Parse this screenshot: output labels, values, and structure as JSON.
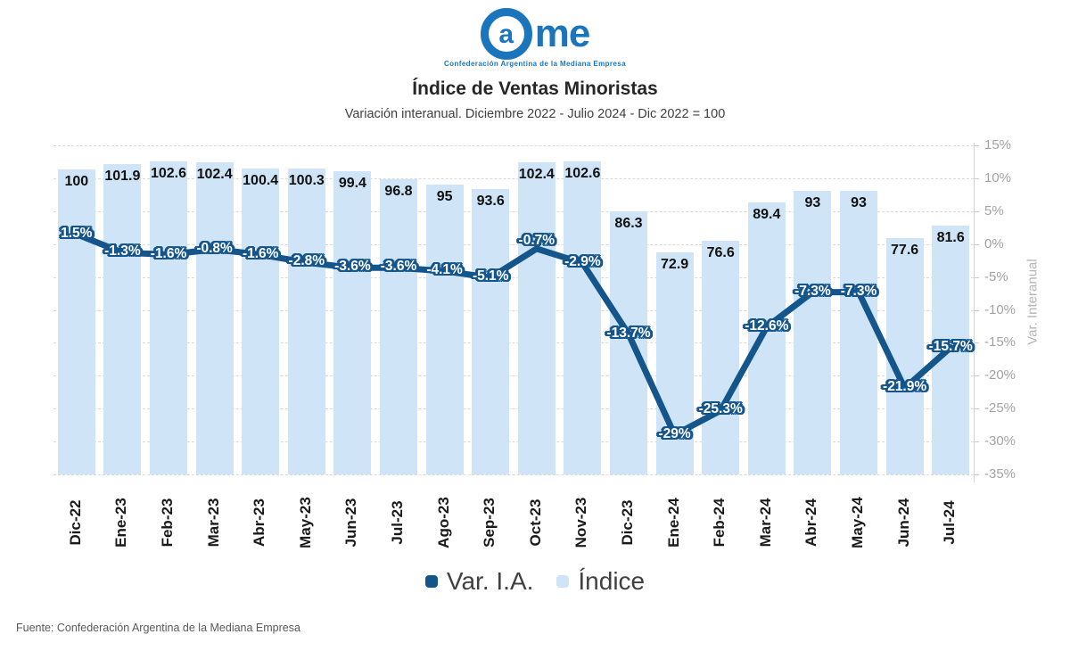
{
  "logo": {
    "letter_a": "a",
    "letters_me": "me",
    "tagline": "Confederación Argentina de la Mediana Empresa"
  },
  "header": {
    "title": "Índice de Ventas Minoristas",
    "subtitle": "Variación interanual. Diciembre 2022 - Julio 2024 - Dic 2022 = 100"
  },
  "chart_data": {
    "type": "combo",
    "categories": [
      "Dic-22",
      "Ene-23",
      "Feb-23",
      "Mar-23",
      "Abr-23",
      "May-23",
      "Jun-23",
      "Jul-23",
      "Ago-23",
      "Sep-23",
      "Oct-23",
      "Nov-23",
      "Dic-23",
      "Ene-24",
      "Feb-24",
      "Mar-24",
      "Abr-24",
      "May-24",
      "Jun-24",
      "Jul-24"
    ],
    "series": [
      {
        "name": "Var. I.A.",
        "type": "line",
        "axis": "right",
        "color": "#14558c",
        "values": [
          1.5,
          -1.3,
          -1.6,
          -0.8,
          -1.6,
          -2.8,
          -3.6,
          -3.6,
          -4.1,
          -5.1,
          -0.7,
          -2.9,
          -13.7,
          -29,
          -25.3,
          -12.6,
          -7.3,
          -7.3,
          -21.9,
          -15.7
        ],
        "labels": [
          "1.5%",
          "-1.3%",
          "-1.6%",
          "-0.8%",
          "-1.6%",
          "-2.8%",
          "-3.6%",
          "-3.6%",
          "-4.1%",
          "-5.1%",
          "-0.7%",
          "-2.9%",
          "-13.7%",
          "-29%",
          "-25.3%",
          "-12.6%",
          "-7.3%",
          "-7.3%",
          "-21.9%",
          "-15.7%"
        ]
      },
      {
        "name": "Índice",
        "type": "bar",
        "axis": "hidden",
        "color": "#cfe4f6",
        "values": [
          100,
          101.9,
          102.6,
          102.4,
          100.4,
          100.3,
          99.4,
          96.8,
          95,
          93.6,
          102.4,
          102.6,
          86.3,
          72.9,
          76.6,
          89.4,
          93,
          93,
          77.6,
          81.6
        ],
        "labels": [
          "100",
          "101.9",
          "102.6",
          "102.4",
          "100.4",
          "100.3",
          "99.4",
          "96.8",
          "95",
          "93.6",
          "102.4",
          "102.6",
          "86.3",
          "72.9",
          "76.6",
          "89.4",
          "93",
          "93",
          "77.6",
          "81.6"
        ]
      }
    ],
    "right_axis": {
      "label": "Var. Interanual",
      "min": -35,
      "max": 15,
      "ticks": [
        "15%",
        "10%",
        "5%",
        "0%",
        "-5%",
        "-10%",
        "-15%",
        "-20%",
        "-25%",
        "-30%",
        "-35%"
      ]
    },
    "grid": "dashed-horizontal",
    "legend_position": "bottom"
  },
  "footer": {
    "source": "Fuente: Confederación Argentina de la Mediana Empresa"
  }
}
